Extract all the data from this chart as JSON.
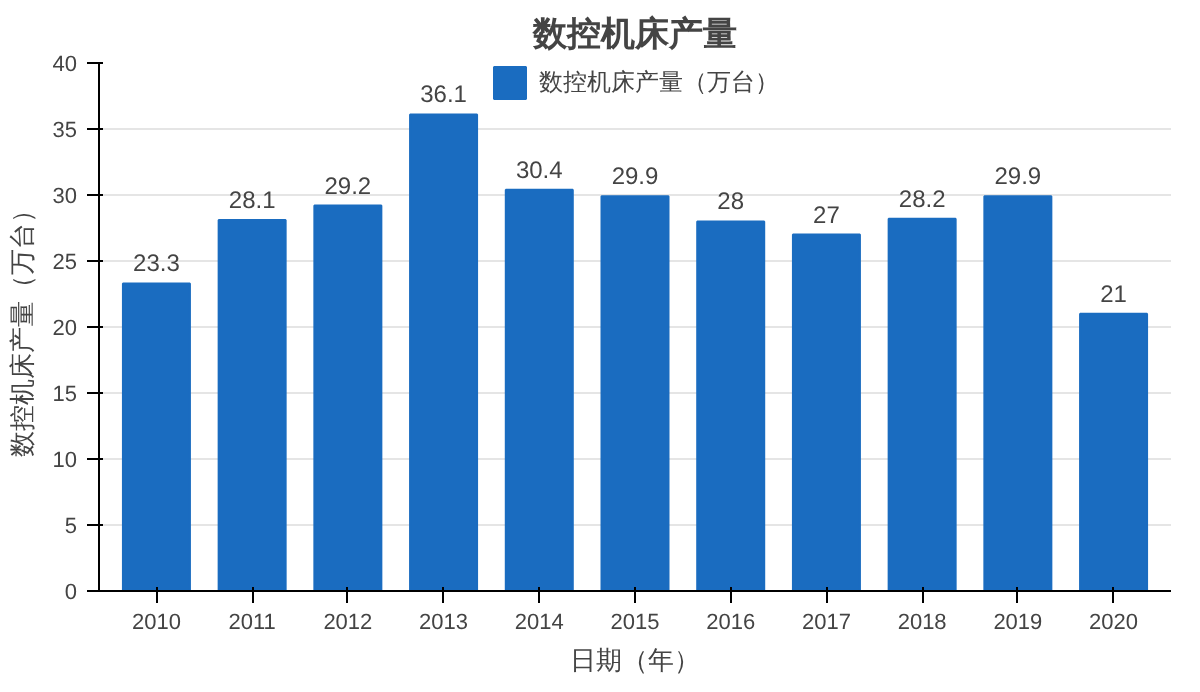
{
  "chart_data": {
    "type": "bar",
    "title": "数控机床产量",
    "xlabel": "日期（年）",
    "ylabel": "数控机床产量（万台）",
    "categories": [
      "2010",
      "2011",
      "2012",
      "2013",
      "2014",
      "2015",
      "2016",
      "2017",
      "2018",
      "2019",
      "2020"
    ],
    "series": [
      {
        "name": "数控机床产量（万台）",
        "color": "#1a6cc0",
        "values": [
          23.3,
          28.1,
          29.2,
          36.1,
          30.4,
          29.9,
          28,
          27,
          28.2,
          29.9,
          21
        ]
      }
    ],
    "ylim": [
      0,
      40
    ],
    "yticks": [
      0,
      5,
      10,
      15,
      20,
      25,
      30,
      35,
      40
    ],
    "grid": "y",
    "legend": "top",
    "data_labels": true
  }
}
